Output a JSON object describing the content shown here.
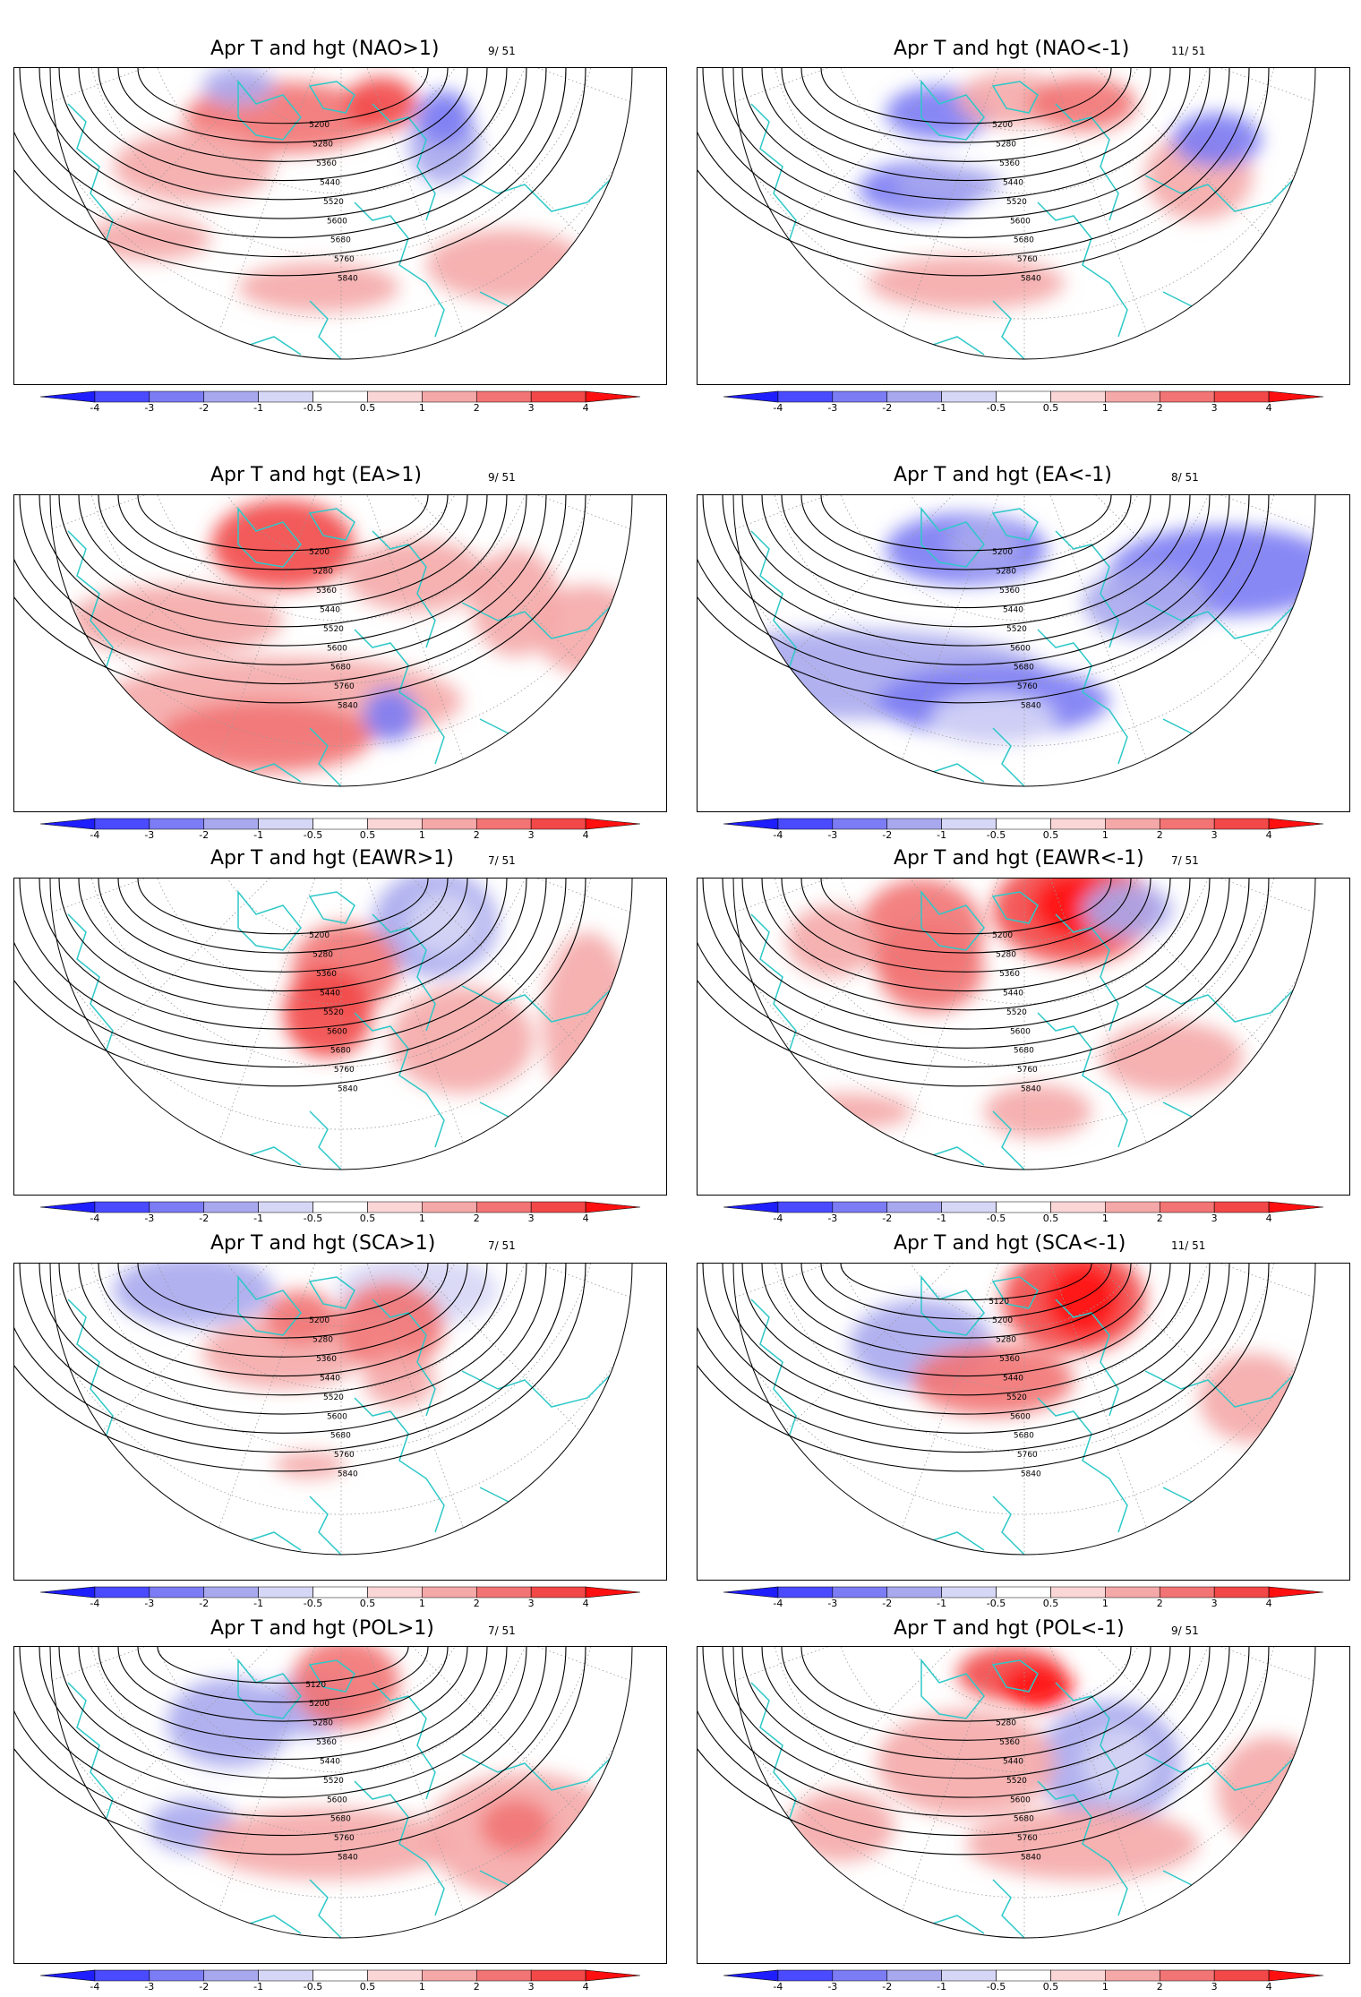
{
  "colorbar": {
    "labels": [
      "-4",
      "-3",
      "-2",
      "-1",
      "-0.5",
      "0.5",
      "1",
      "2",
      "3",
      "4"
    ],
    "colors": [
      "#1e1eff",
      "#4a4aff",
      "#7c7cf4",
      "#a8a8ee",
      "#d6d6f6",
      "#ffffff",
      "#fbd6d6",
      "#f5a8a8",
      "#f27474",
      "#f24848",
      "#ff1010"
    ]
  },
  "panels": [
    {
      "title": "Apr T and hgt (NAO>1)",
      "count": "9/ 51",
      "contours": [
        "5200",
        "5280",
        "5360",
        "5440",
        "5520",
        "5600",
        "5680",
        "5760",
        "5840"
      ]
    },
    {
      "title": "Apr T and hgt (NAO<-1)",
      "count": "11/ 51",
      "contours": [
        "5200",
        "5280",
        "5360",
        "5440",
        "5520",
        "5600",
        "5680",
        "5760",
        "5840"
      ]
    },
    {
      "title": "Apr T and hgt (EA>1)",
      "count": "9/ 51",
      "contours": [
        "5200",
        "5280",
        "5360",
        "5440",
        "5520",
        "5600",
        "5680",
        "5760",
        "5840"
      ]
    },
    {
      "title": "Apr T and hgt (EA<-1)",
      "count": "8/ 51",
      "contours": [
        "5200",
        "5280",
        "5360",
        "5440",
        "5520",
        "5600",
        "5680",
        "5760",
        "5840"
      ]
    },
    {
      "title": "Apr T and hgt (EAWR>1)",
      "count": "7/ 51",
      "contours": [
        "5200",
        "5280",
        "5360",
        "5440",
        "5520",
        "5600",
        "5680",
        "5760",
        "5840"
      ]
    },
    {
      "title": "Apr T and hgt (EAWR<-1)",
      "count": "7/ 51",
      "contours": [
        "5200",
        "5280",
        "5360",
        "5440",
        "5520",
        "5600",
        "5680",
        "5760",
        "5840"
      ]
    },
    {
      "title": "Apr T and hgt (SCA>1)",
      "count": "7/ 51",
      "contours": [
        "5200",
        "5280",
        "5360",
        "5440",
        "5520",
        "5600",
        "5680",
        "5760",
        "5840"
      ]
    },
    {
      "title": "Apr T and hgt (SCA<-1)",
      "count": "11/ 51",
      "contours": [
        "5120",
        "5200",
        "5280",
        "5360",
        "5440",
        "5520",
        "5600",
        "5680",
        "5760",
        "5840"
      ]
    },
    {
      "title": "Apr T and hgt (POL>1)",
      "count": "7/ 51",
      "contours": [
        "5120",
        "5200",
        "5280",
        "5360",
        "5440",
        "5520",
        "5600",
        "5680",
        "5760",
        "5840"
      ]
    },
    {
      "title": "Apr T and hgt (POL<-1)",
      "count": "9/ 51",
      "contours": [
        "5280",
        "5360",
        "5440",
        "5520",
        "5600",
        "5680",
        "5760",
        "5840"
      ]
    }
  ]
}
